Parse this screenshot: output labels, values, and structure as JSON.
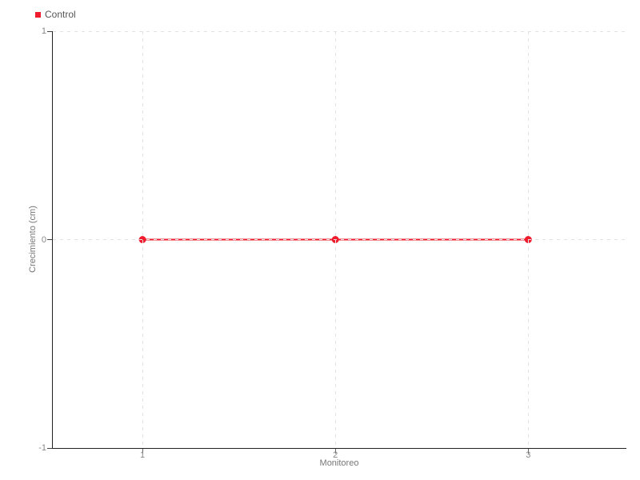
{
  "page": {
    "background": "#ffffff"
  },
  "legend": {
    "position": "top-left",
    "items": [
      {
        "label": "Control",
        "color": "#ee1c2d"
      }
    ]
  },
  "chart_data": {
    "type": "line",
    "title": "",
    "xlabel": "Monitoreo",
    "ylabel": "Crecimiento (cm)",
    "xlim": [
      0.535,
      3.505
    ],
    "ylim": [
      -1,
      1
    ],
    "xticks": [
      1,
      2,
      3
    ],
    "yticks": [
      1,
      0,
      -1
    ],
    "xtick_labels": [
      "1",
      "2",
      "3"
    ],
    "ytick_labels": [
      "1",
      "0",
      "-1"
    ],
    "grid": {
      "on": true,
      "style": "dashed",
      "color": "#e2e2e2"
    },
    "axis_color": "#222222",
    "tick_label_color": "#888888",
    "axis_title_color": "#777777",
    "line_width": 2,
    "marker": {
      "shape": "circle",
      "radius": 4.5
    },
    "series": [
      {
        "name": "Control",
        "color": "#ee1c2d",
        "x": [
          1,
          2,
          3
        ],
        "y": [
          0,
          0,
          0
        ]
      }
    ]
  }
}
